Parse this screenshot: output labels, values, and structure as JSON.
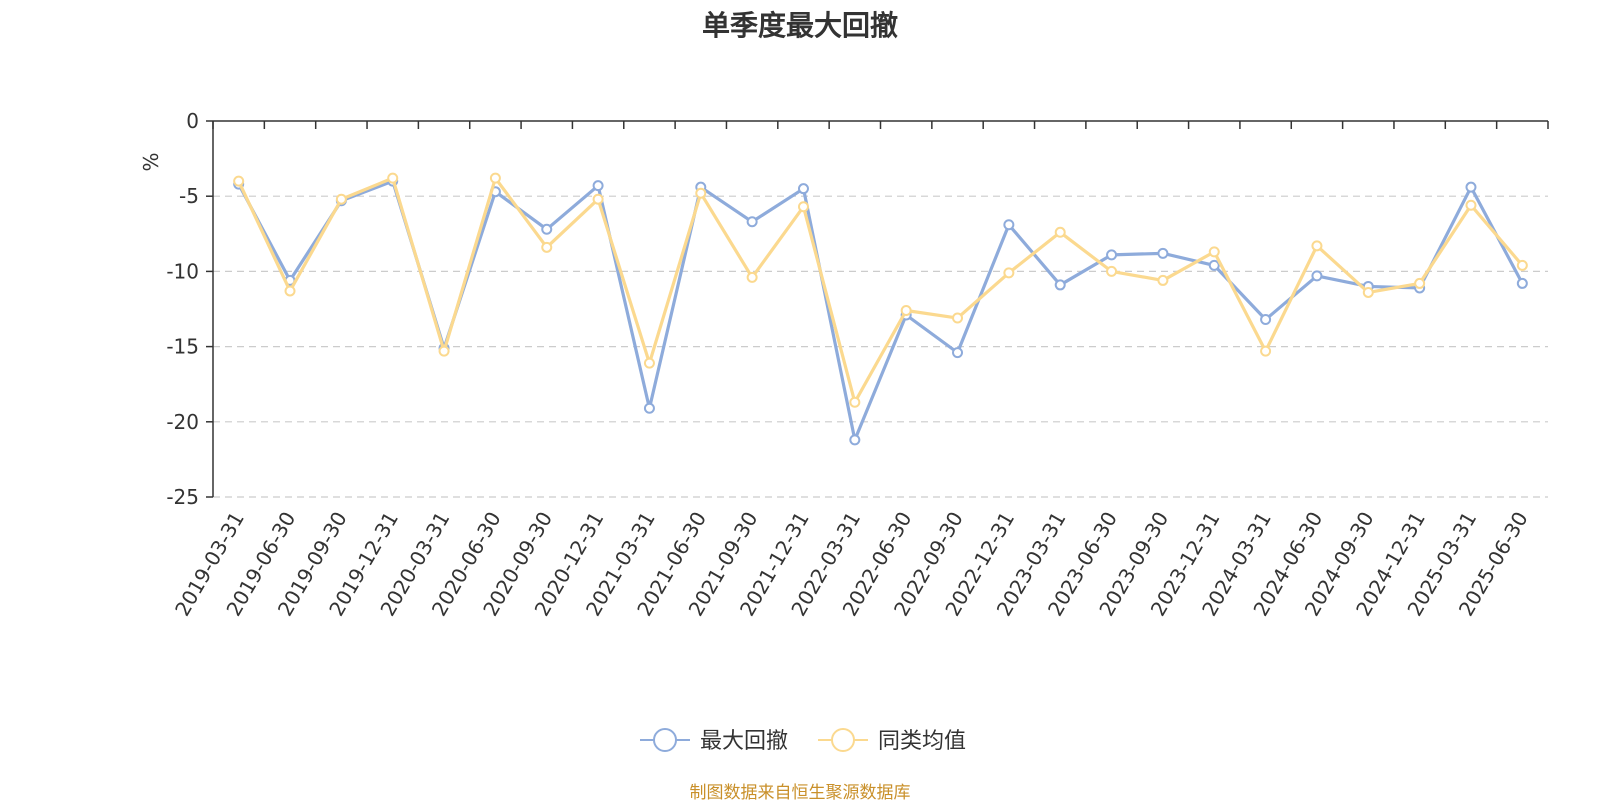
{
  "title": "单季度最大回撤",
  "source_note": "制图数据来自恒生聚源数据库",
  "colors": {
    "series_1": "#8eabdb",
    "series_2": "#fbd98f",
    "axis": "#333333",
    "grid": "#cccccc",
    "unit": "#e0201c",
    "source": "#c9902a"
  },
  "chart_data": {
    "type": "line",
    "title": "单季度最大回撤",
    "ylabel": "%",
    "xlabel": "",
    "ylim": [
      -25,
      0
    ],
    "yticks": [
      0,
      -5,
      -10,
      -15,
      -20,
      -25
    ],
    "grid": true,
    "legend_position": "bottom",
    "categories": [
      "2019-03-31",
      "2019-06-30",
      "2019-09-30",
      "2019-12-31",
      "2020-03-31",
      "2020-06-30",
      "2020-09-30",
      "2020-12-31",
      "2021-03-31",
      "2021-06-30",
      "2021-09-30",
      "2021-12-31",
      "2022-03-31",
      "2022-06-30",
      "2022-09-30",
      "2022-12-31",
      "2023-03-31",
      "2023-06-30",
      "2023-09-30",
      "2023-12-31",
      "2024-03-31",
      "2024-06-30",
      "2024-09-30",
      "2024-12-31",
      "2025-03-31",
      "2025-06-30"
    ],
    "series": [
      {
        "name": "最大回撤",
        "values": [
          -4.2,
          -10.6,
          -5.3,
          -4.0,
          -15.1,
          -4.7,
          -7.2,
          -4.3,
          -19.1,
          -4.4,
          -6.7,
          -4.5,
          -21.2,
          -12.9,
          -15.4,
          -6.9,
          -10.9,
          -8.9,
          -8.8,
          -9.6,
          -13.2,
          -10.3,
          -11.0,
          -11.1,
          -4.4,
          -10.8
        ]
      },
      {
        "name": "同类均值",
        "values": [
          -4.0,
          -11.3,
          -5.2,
          -3.8,
          -15.3,
          -3.8,
          -8.4,
          -5.2,
          -16.1,
          -4.8,
          -10.4,
          -5.7,
          -18.7,
          -12.6,
          -13.1,
          -10.1,
          -7.4,
          -10.0,
          -10.6,
          -8.7,
          -15.3,
          -8.3,
          -11.4,
          -10.8,
          -5.6,
          -9.6
        ]
      }
    ]
  }
}
